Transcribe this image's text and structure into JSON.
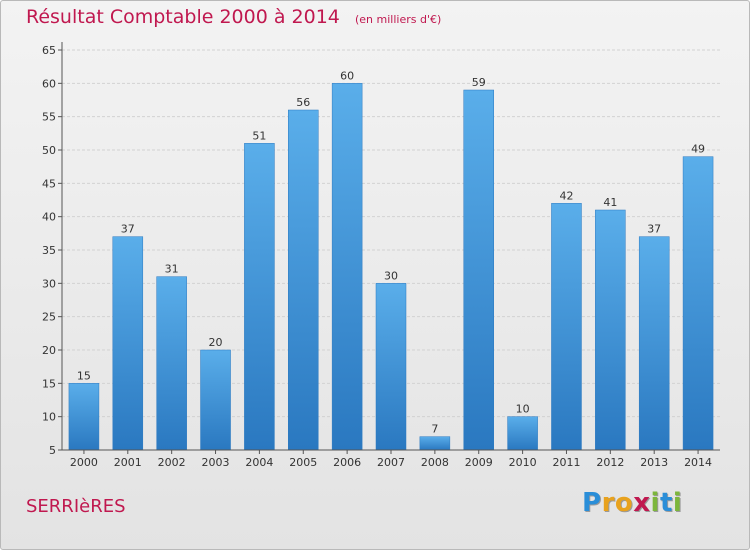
{
  "header": {
    "title": "Résultat Comptable 2000 à 2014",
    "unit": "(en milliers d'€)"
  },
  "footer": {
    "commune": "SERRIèRES",
    "logo_letters": [
      "P",
      "r",
      "o",
      "x",
      "i",
      "t",
      "i"
    ]
  },
  "chart_data": {
    "type": "bar",
    "title": "Résultat Comptable 2000 à 2014",
    "subtitle": "(en milliers d'€)",
    "xlabel": "",
    "ylabel": "",
    "categories": [
      "2000",
      "2001",
      "2002",
      "2003",
      "2004",
      "2005",
      "2006",
      "2007",
      "2008",
      "2009",
      "2010",
      "2011",
      "2012",
      "2013",
      "2014"
    ],
    "values": [
      15,
      37,
      31,
      20,
      51,
      56,
      60,
      30,
      7,
      59,
      10,
      42,
      41,
      37,
      49
    ],
    "ylim": [
      5,
      65
    ],
    "yticks": [
      5,
      10,
      15,
      20,
      25,
      30,
      35,
      40,
      45,
      50,
      55,
      60,
      65
    ],
    "grid": true,
    "bar_color": "#3d8fd6"
  }
}
